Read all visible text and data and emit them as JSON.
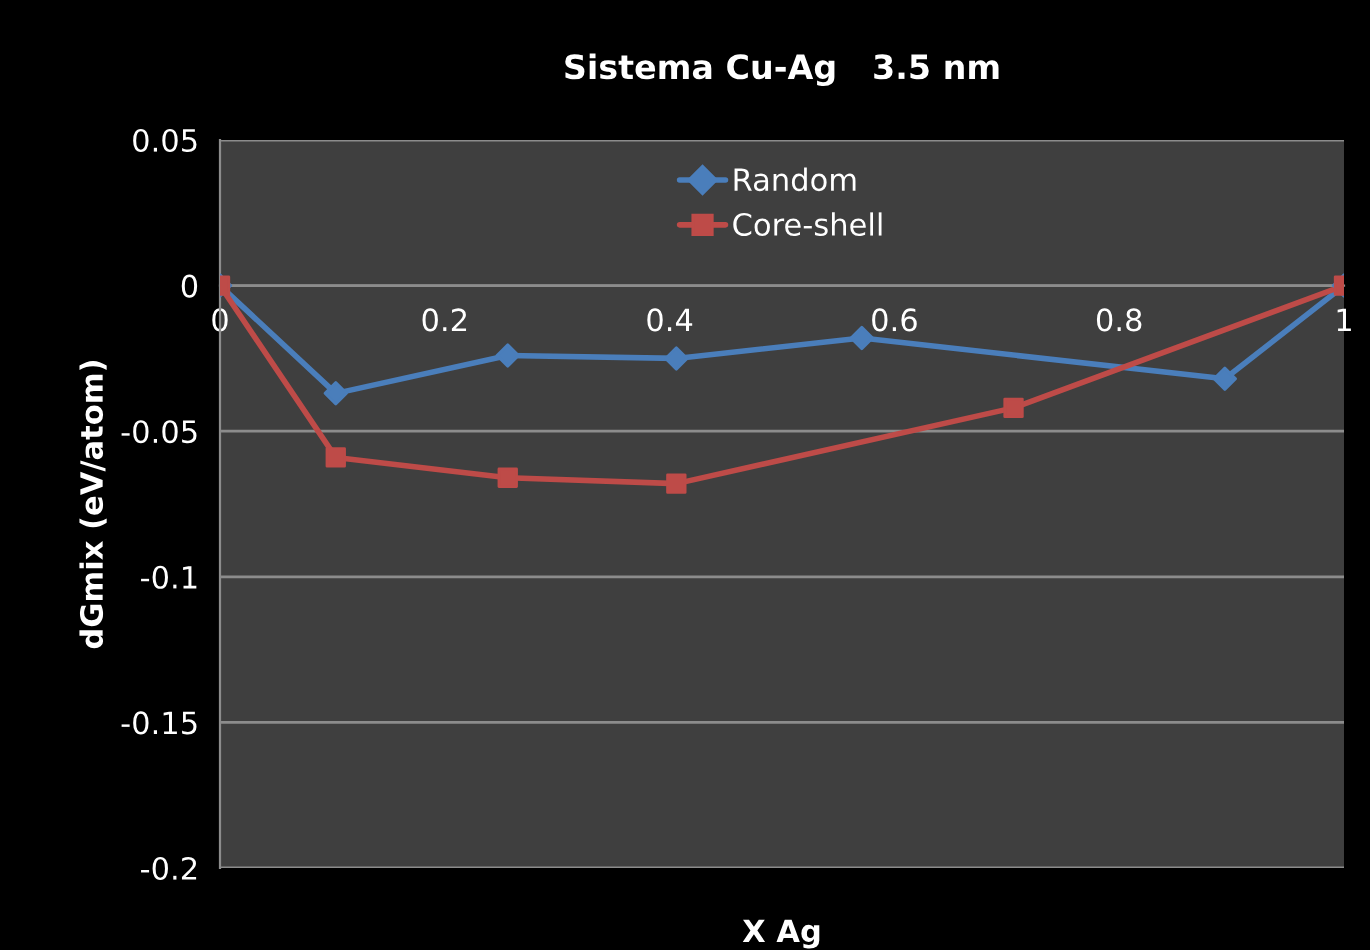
{
  "chart_data": {
    "type": "line",
    "title": "Sistema Cu-Ag   3.5 nm",
    "xlabel": "X Ag",
    "ylabel": "dGmix (eV/atom)",
    "xlim": [
      0,
      1
    ],
    "xticks": [
      0,
      0.2,
      0.4,
      0.6,
      0.8,
      1
    ],
    "ylim": [
      -0.2,
      0.05
    ],
    "yticks": [
      -0.2,
      -0.15,
      -0.1,
      -0.05,
      0,
      0.05
    ],
    "grid": "y",
    "legend": "top",
    "line_style": "solid",
    "series": [
      {
        "name": "Random",
        "color": "#4a7ebb",
        "marker": "diamond",
        "x": [
          0,
          0.103,
          0.256,
          0.406,
          0.571,
          0.894,
          1
        ],
        "values": [
          0,
          -0.037,
          -0.024,
          -0.025,
          -0.018,
          -0.032,
          0
        ]
      },
      {
        "name": "Core-shell",
        "color": "#be4b48",
        "marker": "square",
        "x": [
          0,
          0.103,
          0.256,
          0.406,
          0.706,
          1
        ],
        "values": [
          0,
          -0.059,
          -0.066,
          -0.068,
          -0.042,
          0
        ]
      }
    ]
  }
}
